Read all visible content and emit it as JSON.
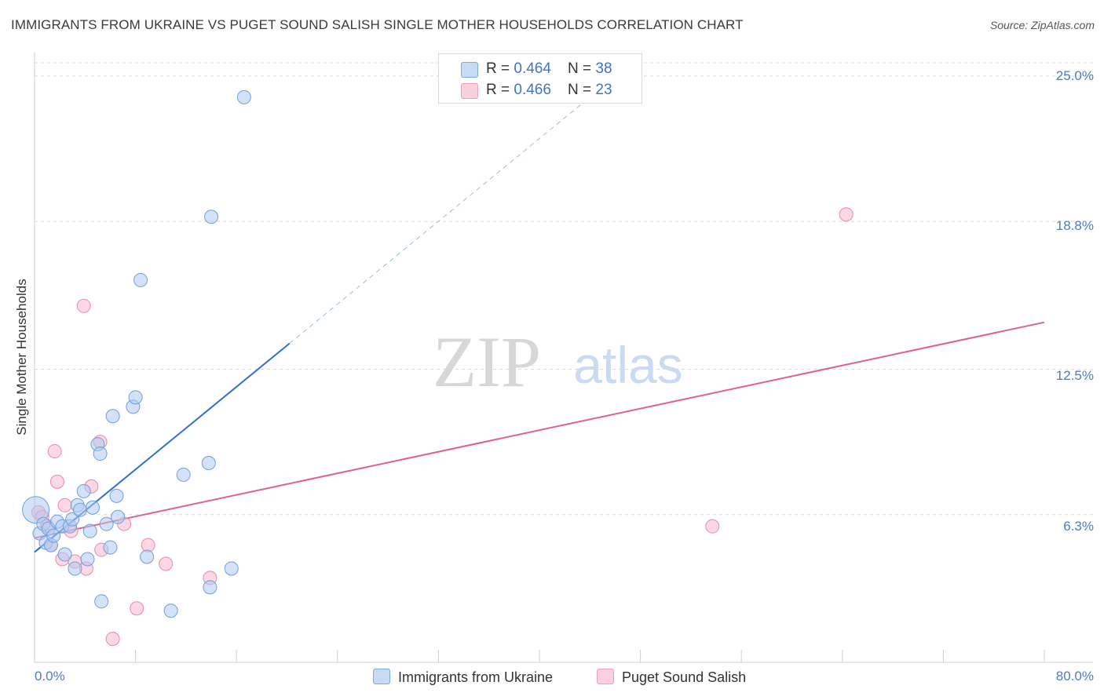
{
  "title": "IMMIGRANTS FROM UKRAINE VS PUGET SOUND SALISH SINGLE MOTHER HOUSEHOLDS CORRELATION CHART",
  "source": "Source: ZipAtlas.com",
  "watermark": {
    "zip": "ZIP",
    "atlas": "atlas"
  },
  "legend": {
    "ukraine": {
      "r_label": "R = ",
      "r_value": "0.464",
      "n_label": "N = ",
      "n_value": "38"
    },
    "salish": {
      "r_label": "R = ",
      "r_value": "0.466",
      "n_label": "N = ",
      "n_value": "23"
    }
  },
  "colors": {
    "ukraine_fill": "#aecbf0",
    "ukraine_stroke": "#6f9fdc",
    "ukraine_line": "#2f6fce",
    "salish_fill": "#f7b8cc",
    "salish_stroke": "#e98aa8",
    "salish_line": "#e0618d",
    "tick_text": "#4a7cc7",
    "grid": "#d9d9d9"
  },
  "chart_data": {
    "type": "scatter",
    "title": "IMMIGRANTS FROM UKRAINE VS PUGET SOUND SALISH SINGLE MOTHER HOUSEHOLDS CORRELATION CHART",
    "xlabel": "",
    "ylabel": "Single Mother Households",
    "xlim": [
      0,
      80
    ],
    "ylim": [
      0,
      25.6
    ],
    "x_tick_labels": [
      "0.0%",
      "80.0%"
    ],
    "y_ticks": [
      6.3,
      12.5,
      18.8,
      25.0
    ],
    "y_tick_labels": [
      "6.3%",
      "12.5%",
      "18.8%",
      "25.0%"
    ],
    "series": [
      {
        "name": "Immigrants from Ukraine",
        "points": [
          {
            "x": 0.1,
            "y": 6.5,
            "big": true
          },
          {
            "x": 0.4,
            "y": 5.5
          },
          {
            "x": 0.7,
            "y": 5.9
          },
          {
            "x": 0.9,
            "y": 5.1
          },
          {
            "x": 1.1,
            "y": 5.7
          },
          {
            "x": 1.3,
            "y": 5.0
          },
          {
            "x": 1.5,
            "y": 5.4
          },
          {
            "x": 1.8,
            "y": 6.0
          },
          {
            "x": 2.2,
            "y": 5.8
          },
          {
            "x": 2.4,
            "y": 4.6
          },
          {
            "x": 2.8,
            "y": 5.8
          },
          {
            "x": 3.0,
            "y": 6.1
          },
          {
            "x": 3.2,
            "y": 4.0
          },
          {
            "x": 3.4,
            "y": 6.7
          },
          {
            "x": 3.6,
            "y": 6.5
          },
          {
            "x": 3.9,
            "y": 7.3
          },
          {
            "x": 4.2,
            "y": 4.4
          },
          {
            "x": 4.4,
            "y": 5.6
          },
          {
            "x": 4.6,
            "y": 6.6
          },
          {
            "x": 5.0,
            "y": 9.3
          },
          {
            "x": 5.2,
            "y": 8.9
          },
          {
            "x": 5.3,
            "y": 2.6
          },
          {
            "x": 5.7,
            "y": 5.9
          },
          {
            "x": 6.0,
            "y": 4.9
          },
          {
            "x": 6.2,
            "y": 10.5
          },
          {
            "x": 6.5,
            "y": 7.1
          },
          {
            "x": 6.6,
            "y": 6.2
          },
          {
            "x": 7.8,
            "y": 10.9
          },
          {
            "x": 8.0,
            "y": 11.3
          },
          {
            "x": 8.4,
            "y": 16.3
          },
          {
            "x": 8.9,
            "y": 4.5
          },
          {
            "x": 10.8,
            "y": 2.2
          },
          {
            "x": 11.8,
            "y": 8.0
          },
          {
            "x": 13.8,
            "y": 8.5
          },
          {
            "x": 13.9,
            "y": 3.2
          },
          {
            "x": 14.0,
            "y": 19.0
          },
          {
            "x": 15.6,
            "y": 4.0
          },
          {
            "x": 16.6,
            "y": 24.1
          }
        ],
        "trend": {
          "x0": 0,
          "y0": 4.7,
          "x1": 20.2,
          "y1": 13.6,
          "dash_x1": 44.0,
          "dash_y1": 24.1
        }
      },
      {
        "name": "Puget Sound Salish",
        "points": [
          {
            "x": 0.3,
            "y": 6.4
          },
          {
            "x": 0.6,
            "y": 6.2
          },
          {
            "x": 1.0,
            "y": 5.8
          },
          {
            "x": 1.3,
            "y": 5.0
          },
          {
            "x": 1.6,
            "y": 9.0
          },
          {
            "x": 1.8,
            "y": 7.7
          },
          {
            "x": 2.2,
            "y": 4.4
          },
          {
            "x": 2.4,
            "y": 6.7
          },
          {
            "x": 2.9,
            "y": 5.6
          },
          {
            "x": 3.2,
            "y": 4.3
          },
          {
            "x": 4.1,
            "y": 4.0
          },
          {
            "x": 4.5,
            "y": 7.5
          },
          {
            "x": 5.2,
            "y": 9.4
          },
          {
            "x": 5.3,
            "y": 4.8
          },
          {
            "x": 3.9,
            "y": 15.2
          },
          {
            "x": 6.2,
            "y": 1.0
          },
          {
            "x": 7.1,
            "y": 5.9
          },
          {
            "x": 8.1,
            "y": 2.3
          },
          {
            "x": 9.0,
            "y": 5.0
          },
          {
            "x": 10.4,
            "y": 4.2
          },
          {
            "x": 13.9,
            "y": 3.6
          },
          {
            "x": 53.7,
            "y": 5.8
          },
          {
            "x": 64.3,
            "y": 19.1
          }
        ],
        "trend": {
          "x0": 0,
          "y0": 5.3,
          "x1": 80,
          "y1": 14.5
        }
      }
    ]
  },
  "bottom_legend": {
    "ukraine_label": "Immigrants from Ukraine",
    "salish_label": "Puget Sound Salish"
  }
}
